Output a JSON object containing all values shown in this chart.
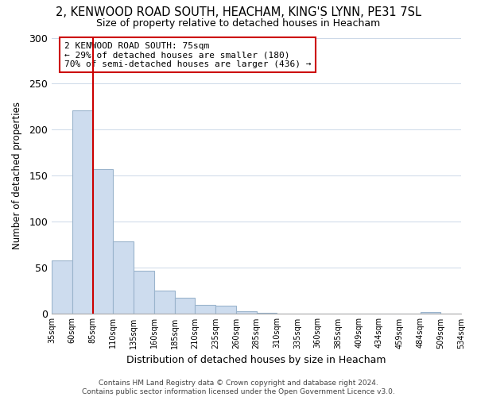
{
  "title": "2, KENWOOD ROAD SOUTH, HEACHAM, KING'S LYNN, PE31 7SL",
  "subtitle": "Size of property relative to detached houses in Heacham",
  "xlabel": "Distribution of detached houses by size in Heacham",
  "ylabel": "Number of detached properties",
  "bar_values": [
    58,
    221,
    157,
    79,
    47,
    25,
    17,
    10,
    9,
    3,
    1,
    0,
    0,
    0,
    0,
    0,
    0,
    0,
    2,
    0
  ],
  "bar_labels": [
    "35sqm",
    "60sqm",
    "85sqm",
    "110sqm",
    "135sqm",
    "160sqm",
    "185sqm",
    "210sqm",
    "235sqm",
    "260sqm",
    "285sqm",
    "310sqm",
    "335sqm",
    "360sqm",
    "385sqm",
    "409sqm",
    "434sqm",
    "459sqm",
    "484sqm",
    "509sqm",
    "534sqm"
  ],
  "bar_color": "#cddcee",
  "bar_edge_color": "#9ab4cc",
  "vline_x": 2,
  "vline_color": "#cc0000",
  "ylim": [
    0,
    300
  ],
  "yticks": [
    0,
    50,
    100,
    150,
    200,
    250,
    300
  ],
  "annotation_title": "2 KENWOOD ROAD SOUTH: 75sqm",
  "annotation_line1": "← 29% of detached houses are smaller (180)",
  "annotation_line2": "70% of semi-detached houses are larger (436) →",
  "footer_line1": "Contains HM Land Registry data © Crown copyright and database right 2024.",
  "footer_line2": "Contains public sector information licensed under the Open Government Licence v3.0.",
  "background_color": "#ffffff",
  "figsize": [
    6.0,
    5.0
  ],
  "dpi": 100
}
